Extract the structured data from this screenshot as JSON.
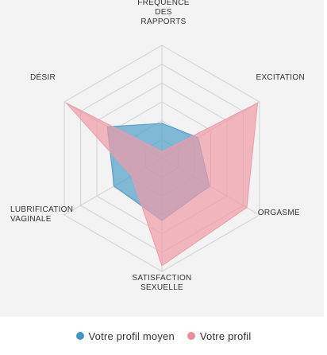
{
  "chart_data": {
    "type": "radar",
    "axes": [
      {
        "label_lines": [
          "FRÉQUENCE",
          "DES",
          "RAPPORTS"
        ]
      },
      {
        "label_lines": [
          "EXCITATION"
        ]
      },
      {
        "label_lines": [
          "ORGASME"
        ]
      },
      {
        "label_lines": [
          "SATISFACTION",
          "SEXUELLE"
        ]
      },
      {
        "label_lines": [
          "LUBRIFICATION",
          "VAGINALE"
        ]
      },
      {
        "label_lines": [
          "DÉSIR"
        ]
      }
    ],
    "levels": 6,
    "max": 1,
    "series": [
      {
        "name": "Votre profil moyen",
        "color": "#4f9fc8",
        "values": [
          0.31,
          0.37,
          0.49,
          0.55,
          0.49,
          0.56
        ]
      },
      {
        "name": "Votre profil",
        "color": "#ef9aa7",
        "values": [
          0.06,
          0.98,
          0.87,
          0.95,
          0.31,
          0.98
        ]
      }
    ],
    "grid": true
  },
  "legend": {
    "items": [
      {
        "label": "Votre profil moyen",
        "color": "#3f98c2"
      },
      {
        "label": "Votre profil",
        "color": "#ee8d9c"
      }
    ]
  }
}
